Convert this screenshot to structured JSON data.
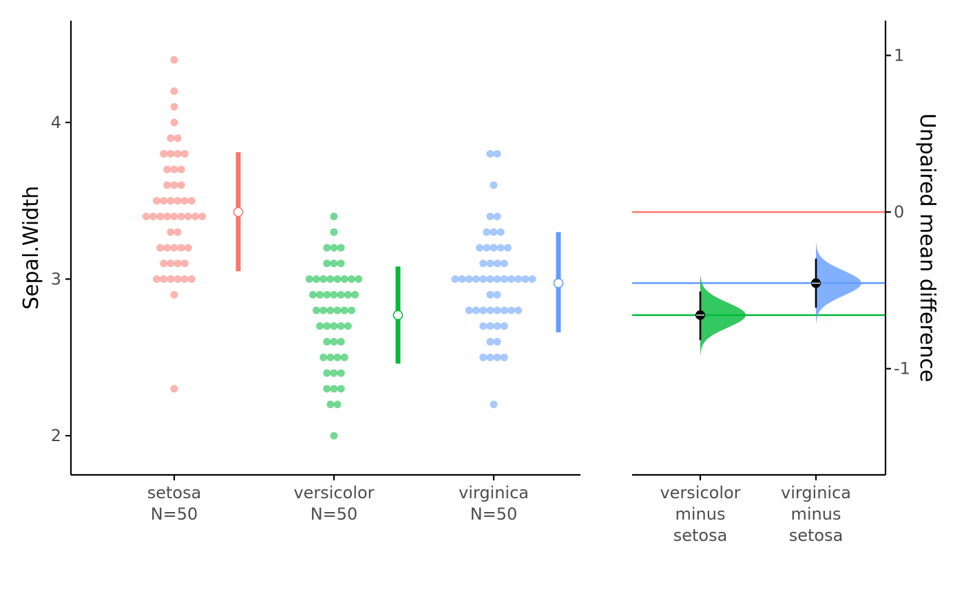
{
  "chart_data": {
    "type": "estimation-plot",
    "left_panel": {
      "type": "scatter",
      "ylabel": "Sepal.Width",
      "ylim": [
        1.75,
        4.65
      ],
      "yticks": [
        2,
        3,
        4
      ],
      "groups": [
        {
          "name": "setosa",
          "label_lines": [
            "setosa",
            "N=50"
          ],
          "color": "#F8766D",
          "values": [
            3.5,
            3.0,
            3.2,
            3.1,
            3.6,
            3.9,
            3.4,
            3.4,
            2.9,
            3.1,
            3.7,
            3.4,
            3.0,
            3.0,
            4.0,
            4.4,
            3.9,
            3.5,
            3.8,
            3.8,
            3.4,
            3.7,
            3.6,
            3.3,
            3.4,
            3.0,
            3.4,
            3.5,
            3.4,
            3.2,
            3.1,
            3.4,
            4.1,
            4.2,
            3.1,
            3.2,
            3.5,
            3.6,
            3.0,
            3.4,
            3.5,
            2.3,
            3.2,
            3.5,
            3.8,
            3.0,
            3.8,
            3.2,
            3.7,
            3.3
          ],
          "mean": 3.428,
          "sd_range": [
            3.05,
            3.81
          ]
        },
        {
          "name": "versicolor",
          "label_lines": [
            "versicolor",
            "N=50"
          ],
          "color": "#00BA38",
          "values": [
            3.2,
            3.2,
            3.1,
            2.3,
            2.8,
            2.8,
            3.3,
            2.4,
            2.9,
            2.7,
            2.0,
            3.0,
            2.2,
            2.9,
            2.9,
            3.1,
            3.0,
            2.7,
            2.2,
            2.5,
            3.2,
            2.8,
            2.5,
            2.8,
            2.9,
            3.0,
            2.8,
            3.0,
            2.9,
            2.6,
            2.4,
            2.4,
            2.7,
            2.7,
            3.0,
            3.4,
            3.1,
            2.3,
            3.0,
            2.5,
            2.6,
            3.0,
            2.6,
            2.3,
            2.7,
            3.0,
            2.9,
            2.9,
            2.5,
            2.8
          ],
          "mean": 2.77,
          "sd_range": [
            2.46,
            3.08
          ]
        },
        {
          "name": "virginica",
          "label_lines": [
            "virginica",
            "N=50"
          ],
          "color": "#619CFF",
          "values": [
            3.3,
            2.7,
            3.0,
            2.9,
            3.0,
            3.0,
            2.5,
            2.9,
            2.5,
            3.6,
            3.2,
            2.7,
            3.0,
            2.5,
            2.8,
            3.2,
            3.0,
            3.8,
            2.6,
            2.2,
            3.2,
            2.8,
            2.8,
            2.7,
            3.3,
            3.2,
            2.8,
            3.0,
            2.8,
            3.0,
            2.8,
            3.8,
            2.8,
            2.8,
            2.6,
            3.0,
            3.4,
            3.1,
            3.0,
            3.1,
            3.1,
            3.1,
            2.7,
            3.2,
            3.3,
            3.0,
            2.5,
            3.0,
            3.4,
            3.0
          ],
          "mean": 2.974,
          "sd_range": [
            2.66,
            3.3
          ]
        }
      ]
    },
    "right_panel": {
      "type": "effect-size",
      "ylabel": "Unpaired mean difference",
      "ylim": [
        -1.678,
        1.222
      ],
      "yticks": [
        1,
        0,
        -1
      ],
      "ytick_labels": [
        "1",
        "0",
        "-1"
      ],
      "reference_lines": [
        {
          "group": "setosa",
          "value": 0,
          "color": "#F8766D"
        },
        {
          "group": "virginica",
          "value": -0.454,
          "color": "#619CFF"
        },
        {
          "group": "versicolor",
          "value": -0.658,
          "color": "#00BA38"
        }
      ],
      "comparisons": [
        {
          "label_lines": [
            "versicolor",
            "minus",
            "setosa"
          ],
          "color": "#00BA38",
          "estimate": -0.658,
          "ci": [
            -0.818,
            -0.507
          ]
        },
        {
          "label_lines": [
            "virginica",
            "minus",
            "setosa"
          ],
          "color": "#619CFF",
          "estimate": -0.454,
          "ci": [
            -0.611,
            -0.297
          ]
        }
      ]
    }
  }
}
